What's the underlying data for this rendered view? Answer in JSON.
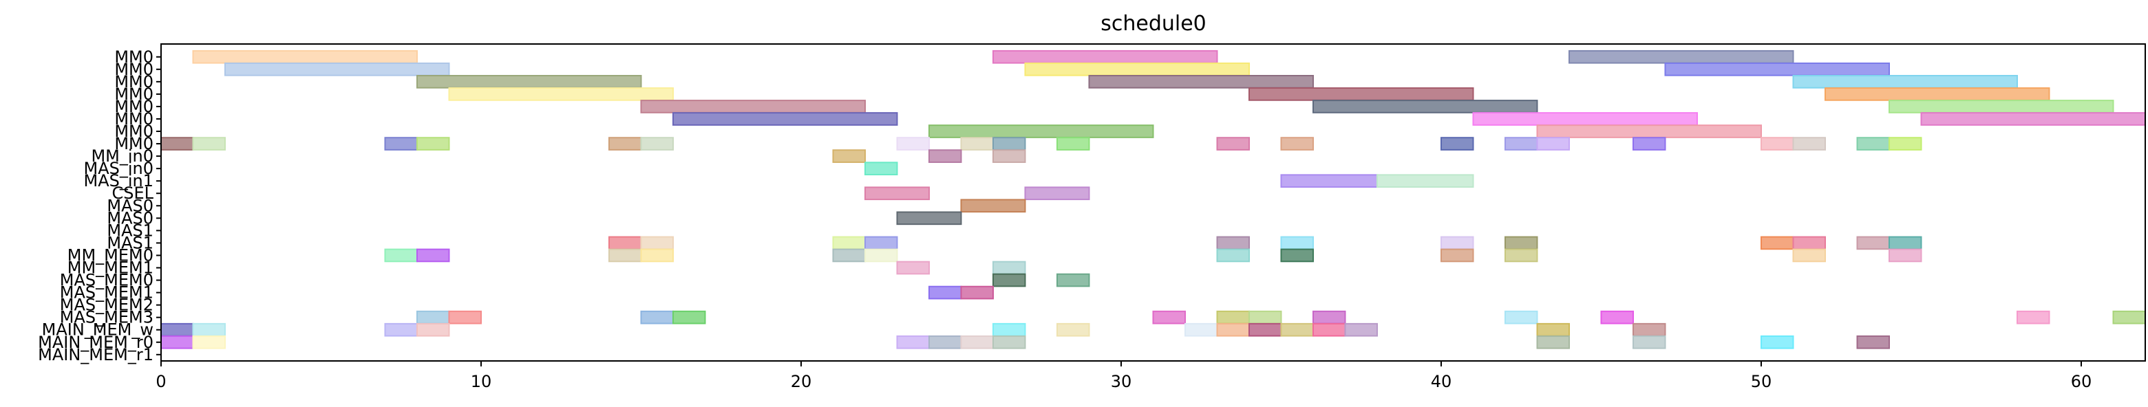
{
  "chart_data": {
    "type": "gantt",
    "title": "schedule0",
    "xlabel": "",
    "ylabel": "",
    "xlim": [
      0,
      62
    ],
    "xticks": [
      0,
      10,
      20,
      30,
      40,
      50,
      60
    ],
    "grid": false,
    "rows": [
      "MM0",
      "MM0",
      "MM0",
      "MM0",
      "MM0",
      "MM0",
      "MM0",
      "MM0",
      "MM_in0",
      "MAS_in0",
      "MAS_in1",
      "CSEL",
      "MAS0",
      "MAS0",
      "MAS1",
      "MAS1",
      "MM_MEM0",
      "MM_MEM1",
      "MAS_MEM0",
      "MAS_MEM1",
      "MAS_MEM2",
      "MAS_MEM3",
      "MAIN_MEM_w",
      "MAIN_MEM_r0",
      "MAIN_MEM_r1"
    ],
    "tasks": [
      {
        "row": 0,
        "start": 1,
        "end": 8,
        "color": "#fdd0a2"
      },
      {
        "row": 0,
        "start": 26,
        "end": 33,
        "color": "#e377c2"
      },
      {
        "row": 0,
        "start": 44,
        "end": 51,
        "color": "#8088b0"
      },
      {
        "row": 1,
        "start": 2,
        "end": 9,
        "color": "#aec7e8"
      },
      {
        "row": 1,
        "start": 27,
        "end": 34,
        "color": "#f7ea74"
      },
      {
        "row": 1,
        "start": 47,
        "end": 54,
        "color": "#7b7bea"
      },
      {
        "row": 2,
        "start": 8,
        "end": 15,
        "color": "#9aa77a"
      },
      {
        "row": 2,
        "start": 29,
        "end": 36,
        "color": "#8c6d80"
      },
      {
        "row": 2,
        "start": 51,
        "end": 58,
        "color": "#7fd4ee"
      },
      {
        "row": 3,
        "start": 9,
        "end": 16,
        "color": "#fbef9b"
      },
      {
        "row": 3,
        "start": 34,
        "end": 41,
        "color": "#a55a6a"
      },
      {
        "row": 3,
        "start": 52,
        "end": 59,
        "color": "#f5a661"
      },
      {
        "row": 4,
        "start": 15,
        "end": 22,
        "color": "#c07f8f"
      },
      {
        "row": 4,
        "start": 36,
        "end": 43,
        "color": "#5e6a7e"
      },
      {
        "row": 4,
        "start": 54,
        "end": 61,
        "color": "#a6e58b"
      },
      {
        "row": 5,
        "start": 16,
        "end": 23,
        "color": "#6a66b8"
      },
      {
        "row": 5,
        "start": 41,
        "end": 48,
        "color": "#f57ef0"
      },
      {
        "row": 5,
        "start": 55,
        "end": 62,
        "color": "#e07ac8"
      },
      {
        "row": 6,
        "start": 24,
        "end": 31,
        "color": "#86bf6a"
      },
      {
        "row": 6,
        "start": 43,
        "end": 50,
        "color": "#ef9aa8"
      },
      {
        "row": 7,
        "start": 0,
        "end": 1,
        "color": "#9a6a6a"
      },
      {
        "row": 7,
        "start": 1,
        "end": 2,
        "color": "#c7e3b4"
      },
      {
        "row": 7,
        "start": 7,
        "end": 8,
        "color": "#7a80d0"
      },
      {
        "row": 7,
        "start": 8,
        "end": 9,
        "color": "#b5e07a"
      },
      {
        "row": 7,
        "start": 14,
        "end": 15,
        "color": "#cfa078"
      },
      {
        "row": 7,
        "start": 15,
        "end": 16,
        "color": "#c9d9c0"
      },
      {
        "row": 7,
        "start": 23,
        "end": 24,
        "color": "#eadcf5"
      },
      {
        "row": 7,
        "start": 25,
        "end": 26,
        "color": "#ddd7b8"
      },
      {
        "row": 7,
        "start": 26,
        "end": 27,
        "color": "#7aa0b0"
      },
      {
        "row": 7,
        "start": 28,
        "end": 29,
        "color": "#8be07a"
      },
      {
        "row": 7,
        "start": 33,
        "end": 34,
        "color": "#d87aa8"
      },
      {
        "row": 7,
        "start": 35,
        "end": 36,
        "color": "#dba283"
      },
      {
        "row": 7,
        "start": 40,
        "end": 41,
        "color": "#5a68b0"
      },
      {
        "row": 7,
        "start": 42,
        "end": 43,
        "color": "#9d9ae8"
      },
      {
        "row": 7,
        "start": 43,
        "end": 44,
        "color": "#c5a7f5"
      },
      {
        "row": 7,
        "start": 46,
        "end": 47,
        "color": "#8f71ee"
      },
      {
        "row": 7,
        "start": 50,
        "end": 51,
        "color": "#f5b2bb"
      },
      {
        "row": 7,
        "start": 51,
        "end": 52,
        "color": "#d4c8c2"
      },
      {
        "row": 7,
        "start": 53,
        "end": 54,
        "color": "#7fcfa8"
      },
      {
        "row": 7,
        "start": 54,
        "end": 55,
        "color": "#c2ee6e"
      },
      {
        "row": 8,
        "start": 21,
        "end": 22,
        "color": "#d4b26a"
      },
      {
        "row": 8,
        "start": 24,
        "end": 25,
        "color": "#b57aa3"
      },
      {
        "row": 8,
        "start": 26,
        "end": 27,
        "color": "#c9aaa8"
      },
      {
        "row": 9,
        "start": 22,
        "end": 23,
        "color": "#6aeac6"
      },
      {
        "row": 10,
        "start": 35,
        "end": 38,
        "color": "#a98af0"
      },
      {
        "row": 10,
        "start": 38,
        "end": 41,
        "color": "#bde8cc"
      },
      {
        "row": 11,
        "start": 22,
        "end": 24,
        "color": "#dd7fa8"
      },
      {
        "row": 11,
        "start": 27,
        "end": 29,
        "color": "#bf88cf"
      },
      {
        "row": 12,
        "start": 25,
        "end": 27,
        "color": "#c48155"
      },
      {
        "row": 13,
        "start": 23,
        "end": 25,
        "color": "#5f6870"
      },
      {
        "row": 15,
        "start": 14,
        "end": 15,
        "color": "#ec7c88"
      },
      {
        "row": 15,
        "start": 15,
        "end": 16,
        "color": "#eed5ba"
      },
      {
        "row": 15,
        "start": 21,
        "end": 22,
        "color": "#dcf3a0"
      },
      {
        "row": 15,
        "start": 22,
        "end": 23,
        "color": "#9599e8"
      },
      {
        "row": 15,
        "start": 33,
        "end": 34,
        "color": "#a889a8"
      },
      {
        "row": 15,
        "start": 35,
        "end": 36,
        "color": "#8ee0f5"
      },
      {
        "row": 15,
        "start": 40,
        "end": 41,
        "color": "#d8c6f0"
      },
      {
        "row": 15,
        "start": 42,
        "end": 43,
        "color": "#9a9a68"
      },
      {
        "row": 15,
        "start": 50,
        "end": 51,
        "color": "#f08a55"
      },
      {
        "row": 15,
        "start": 51,
        "end": 52,
        "color": "#e87a9a"
      },
      {
        "row": 15,
        "start": 53,
        "end": 54,
        "color": "#c99aa6"
      },
      {
        "row": 15,
        "start": 54,
        "end": 55,
        "color": "#5aaea8"
      },
      {
        "row": 16,
        "start": 7,
        "end": 8,
        "color": "#90f0b9"
      },
      {
        "row": 16,
        "start": 8,
        "end": 9,
        "color": "#b65ef0"
      },
      {
        "row": 16,
        "start": 14,
        "end": 15,
        "color": "#d9cdac"
      },
      {
        "row": 16,
        "start": 15,
        "end": 16,
        "color": "#fbe59a"
      },
      {
        "row": 16,
        "start": 21,
        "end": 22,
        "color": "#a8bdbd"
      },
      {
        "row": 16,
        "start": 22,
        "end": 23,
        "color": "#eef3d0"
      },
      {
        "row": 16,
        "start": 33,
        "end": 34,
        "color": "#8ed6d0"
      },
      {
        "row": 16,
        "start": 35,
        "end": 36,
        "color": "#3e7a5a"
      },
      {
        "row": 16,
        "start": 40,
        "end": 41,
        "color": "#d49a7a"
      },
      {
        "row": 16,
        "start": 42,
        "end": 43,
        "color": "#c8c880"
      },
      {
        "row": 16,
        "start": 51,
        "end": 52,
        "color": "#f5d29e"
      },
      {
        "row": 16,
        "start": 54,
        "end": 55,
        "color": "#e8a1c7"
      },
      {
        "row": 17,
        "start": 23,
        "end": 24,
        "color": "#eaa5c8"
      },
      {
        "row": 17,
        "start": 26,
        "end": 27,
        "color": "#a6d1d0"
      },
      {
        "row": 18,
        "start": 26,
        "end": 27,
        "color": "#4a6e58"
      },
      {
        "row": 18,
        "start": 28,
        "end": 29,
        "color": "#6aa88a"
      },
      {
        "row": 19,
        "start": 24,
        "end": 25,
        "color": "#8a6ef0"
      },
      {
        "row": 19,
        "start": 25,
        "end": 26,
        "color": "#cc5a9a"
      },
      {
        "row": 21,
        "start": 8,
        "end": 9,
        "color": "#9ac6e0"
      },
      {
        "row": 21,
        "start": 9,
        "end": 10,
        "color": "#f58b8b"
      },
      {
        "row": 21,
        "start": 15,
        "end": 16,
        "color": "#8cb4e0"
      },
      {
        "row": 21,
        "start": 16,
        "end": 17,
        "color": "#6ad06a"
      },
      {
        "row": 21,
        "start": 31,
        "end": 32,
        "color": "#e06ac8"
      },
      {
        "row": 21,
        "start": 33,
        "end": 34,
        "color": "#c5c86a"
      },
      {
        "row": 21,
        "start": 34,
        "end": 35,
        "color": "#b9d88a"
      },
      {
        "row": 21,
        "start": 36,
        "end": 37,
        "color": "#c866c8"
      },
      {
        "row": 21,
        "start": 42,
        "end": 43,
        "color": "#a8e4f5"
      },
      {
        "row": 21,
        "start": 45,
        "end": 46,
        "color": "#e55ae6"
      },
      {
        "row": 21,
        "start": 58,
        "end": 59,
        "color": "#f59acb"
      },
      {
        "row": 21,
        "start": 61,
        "end": 62,
        "color": "#a8d47a"
      },
      {
        "row": 22,
        "start": 0,
        "end": 1,
        "color": "#6a66c0"
      },
      {
        "row": 22,
        "start": 1,
        "end": 2,
        "color": "#b0e8ee"
      },
      {
        "row": 22,
        "start": 7,
        "end": 8,
        "color": "#b9b4f5"
      },
      {
        "row": 22,
        "start": 8,
        "end": 9,
        "color": "#f0c0c0"
      },
      {
        "row": 22,
        "start": 26,
        "end": 27,
        "color": "#7eeef5"
      },
      {
        "row": 22,
        "start": 28,
        "end": 29,
        "color": "#eee2b0"
      },
      {
        "row": 22,
        "start": 32,
        "end": 33,
        "color": "#dce9f5"
      },
      {
        "row": 22,
        "start": 33,
        "end": 34,
        "color": "#f2b38a"
      },
      {
        "row": 22,
        "start": 34,
        "end": 35,
        "color": "#b2537c"
      },
      {
        "row": 22,
        "start": 35,
        "end": 36,
        "color": "#d2c47a"
      },
      {
        "row": 22,
        "start": 36,
        "end": 37,
        "color": "#f06a9a"
      },
      {
        "row": 22,
        "start": 37,
        "end": 38,
        "color": "#b89ac8"
      },
      {
        "row": 22,
        "start": 43,
        "end": 44,
        "color": "#cdb95a"
      },
      {
        "row": 22,
        "start": 46,
        "end": 47,
        "color": "#c08a8a"
      },
      {
        "row": 23,
        "start": 0,
        "end": 1,
        "color": "#c15ef0"
      },
      {
        "row": 23,
        "start": 1,
        "end": 2,
        "color": "#fdf5c0"
      },
      {
        "row": 23,
        "start": 23,
        "end": 24,
        "color": "#c9aef5"
      },
      {
        "row": 23,
        "start": 24,
        "end": 25,
        "color": "#a7b4c8"
      },
      {
        "row": 23,
        "start": 25,
        "end": 26,
        "color": "#e2cfcf"
      },
      {
        "row": 23,
        "start": 26,
        "end": 27,
        "color": "#b3c6b8"
      },
      {
        "row": 23,
        "start": 43,
        "end": 44,
        "color": "#a7b8a0"
      },
      {
        "row": 23,
        "start": 46,
        "end": 47,
        "color": "#b2c4c6"
      },
      {
        "row": 23,
        "start": 50,
        "end": 51,
        "color": "#6aeafc"
      },
      {
        "row": 23,
        "start": 53,
        "end": 54,
        "color": "#a06a8a"
      }
    ]
  }
}
